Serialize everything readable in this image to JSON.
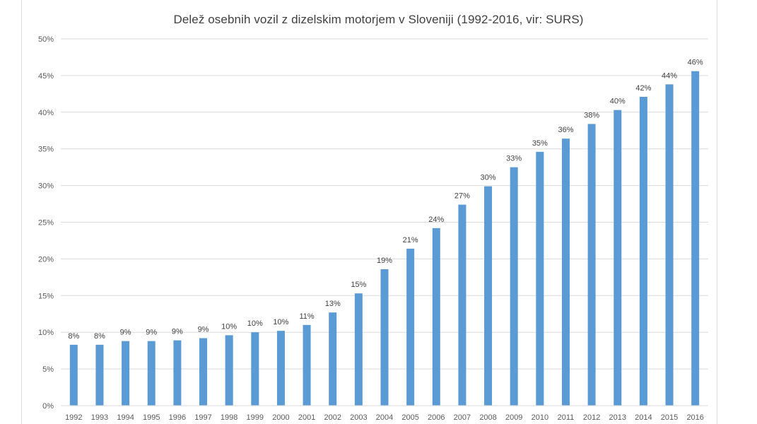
{
  "chart_data": {
    "type": "bar",
    "title": "Delež osebnih vozil z dizelskim motorjem v Sloveniji (1992-2016, vir: SURS)",
    "xlabel": "",
    "ylabel": "",
    "categories": [
      "1992",
      "1993",
      "1994",
      "1995",
      "1996",
      "1997",
      "1998",
      "1999",
      "2000",
      "2001",
      "2002",
      "2003",
      "2004",
      "2005",
      "2006",
      "2007",
      "2008",
      "2009",
      "2010",
      "2011",
      "2012",
      "2013",
      "2014",
      "2015",
      "2016"
    ],
    "values": [
      8.3,
      8.3,
      8.8,
      8.8,
      8.9,
      9.2,
      9.6,
      10.0,
      10.2,
      11.0,
      12.7,
      15.3,
      18.6,
      21.4,
      24.2,
      27.4,
      29.9,
      32.5,
      34.6,
      36.4,
      38.4,
      40.3,
      42.1,
      43.8,
      45.6
    ],
    "data_labels": [
      "8%",
      "8%",
      "9%",
      "9%",
      "9%",
      "9%",
      "10%",
      "10%",
      "10%",
      "11%",
      "13%",
      "15%",
      "19%",
      "21%",
      "24%",
      "27%",
      "30%",
      "33%",
      "35%",
      "36%",
      "38%",
      "40%",
      "42%",
      "44%",
      "46%"
    ],
    "ylim": [
      0,
      50
    ],
    "yticks": [
      0,
      5,
      10,
      15,
      20,
      25,
      30,
      35,
      40,
      45,
      50
    ],
    "ytick_labels": [
      "0%",
      "5%",
      "10%",
      "15%",
      "20%",
      "25%",
      "30%",
      "35%",
      "40%",
      "45%",
      "50%"
    ],
    "grid": true,
    "legend": "none",
    "colors": {
      "bar": "#5b9bd5",
      "grid": "#d9d9d9",
      "axis": "#d9d9d9",
      "title": "#404040"
    }
  }
}
